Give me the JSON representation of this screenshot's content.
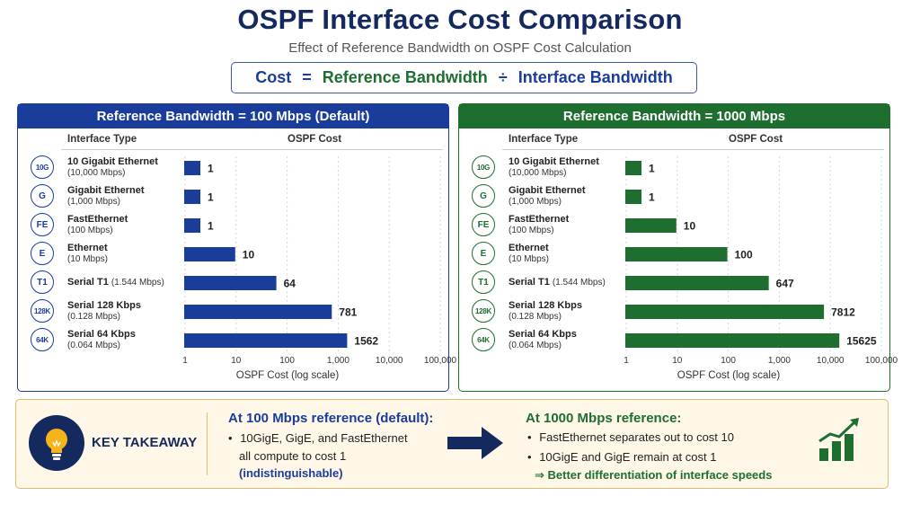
{
  "title": "OSPF Interface Cost Comparison",
  "subtitle": "Effect of Reference Bandwidth on OSPF Cost Calculation",
  "formula": {
    "lhs": "Cost",
    "eq": "=",
    "num": "Reference Bandwidth",
    "div": "÷",
    "den": "Interface Bandwidth"
  },
  "colors": {
    "blue": "#1a3d9c",
    "green": "#1e6e30",
    "navy": "#14295e",
    "amber": "#f4b41a"
  },
  "icons": {
    "bulb": "lightbulb-icon",
    "arrow": "right-arrow-icon",
    "growth": "growth-chart-icon"
  },
  "chart_data": [
    {
      "type": "bar",
      "orientation": "horizontal",
      "title": "Reference Bandwidth = 100 Mbps (Default)",
      "column_labels": {
        "type": "Interface Type",
        "cost": "OSPF Cost"
      },
      "xlabel": "OSPF Cost (log scale)",
      "xscale": "log",
      "xlim": [
        1,
        100000
      ],
      "xticks": [
        "1",
        "10",
        "100",
        "1,000",
        "10,000",
        "100,000"
      ],
      "xtick_values": [
        1,
        10,
        100,
        1000,
        10000,
        100000
      ],
      "color": "#1a3d9c",
      "categories": [
        {
          "badge": "10G",
          "name": "10 Gigabit Ethernet",
          "speed": "(10,000 Mbps)"
        },
        {
          "badge": "G",
          "name": "Gigabit Ethernet",
          "speed": "(1,000 Mbps)"
        },
        {
          "badge": "FE",
          "name": "FastEthernet",
          "speed": "(100 Mbps)"
        },
        {
          "badge": "E",
          "name": "Ethernet",
          "speed": "(10 Mbps)"
        },
        {
          "badge": "T1",
          "name": "Serial T1",
          "speed_inline": "(1.544 Mbps)"
        },
        {
          "badge": "128K",
          "name": "Serial 128 Kbps",
          "speed": "(0.128 Mbps)"
        },
        {
          "badge": "64K",
          "name": "Serial 64 Kbps",
          "speed": "(0.064 Mbps)"
        }
      ],
      "values": [
        1,
        1,
        1,
        10,
        64,
        781,
        1562
      ],
      "value_labels": [
        "1",
        "1",
        "1",
        "10",
        "64",
        "781",
        "1562"
      ]
    },
    {
      "type": "bar",
      "orientation": "horizontal",
      "title": "Reference Bandwidth = 1000 Mbps",
      "column_labels": {
        "type": "Interface Type",
        "cost": "OSPF Cost"
      },
      "xlabel": "OSPF Cost (log scale)",
      "xscale": "log",
      "xlim": [
        1,
        100000
      ],
      "xticks": [
        "1",
        "10",
        "100",
        "1,000",
        "10,000",
        "100,000"
      ],
      "xtick_values": [
        1,
        10,
        100,
        1000,
        10000,
        100000
      ],
      "color": "#1e6e30",
      "categories": [
        {
          "badge": "10G",
          "name": "10 Gigabit Ethernet",
          "speed": "(10,000 Mbps)"
        },
        {
          "badge": "G",
          "name": "Gigabit Ethernet",
          "speed": "(1,000 Mbps)"
        },
        {
          "badge": "FE",
          "name": "FastEthernet",
          "speed": "(100 Mbps)"
        },
        {
          "badge": "E",
          "name": "Ethernet",
          "speed": "(10 Mbps)"
        },
        {
          "badge": "T1",
          "name": "Serial T1",
          "speed_inline": "(1.544 Mbps)"
        },
        {
          "badge": "128K",
          "name": "Serial 128 Kbps",
          "speed": "(0.128 Mbps)"
        },
        {
          "badge": "64K",
          "name": "Serial 64 Kbps",
          "speed": "(0.064 Mbps)"
        }
      ],
      "values": [
        1,
        1,
        10,
        100,
        647,
        7812,
        15625
      ],
      "value_labels": [
        "1",
        "1",
        "10",
        "100",
        "647",
        "7812",
        "15625"
      ]
    }
  ],
  "takeaway": {
    "label": "KEY TAKEAWAY",
    "left_title": "At 100 Mbps reference (default):",
    "left_line1": "10GigE, GigE, and FastEthernet",
    "left_line2": "all compute to cost 1",
    "left_line3": "(indistinguishable)",
    "right_title": "At 1000 Mbps reference:",
    "right_line1": "FastEthernet separates out to cost 10",
    "right_line2": "10GigE and GigE remain at cost 1",
    "right_line3": "⇒ Better differentiation of interface speeds",
    "bullet": "•"
  }
}
